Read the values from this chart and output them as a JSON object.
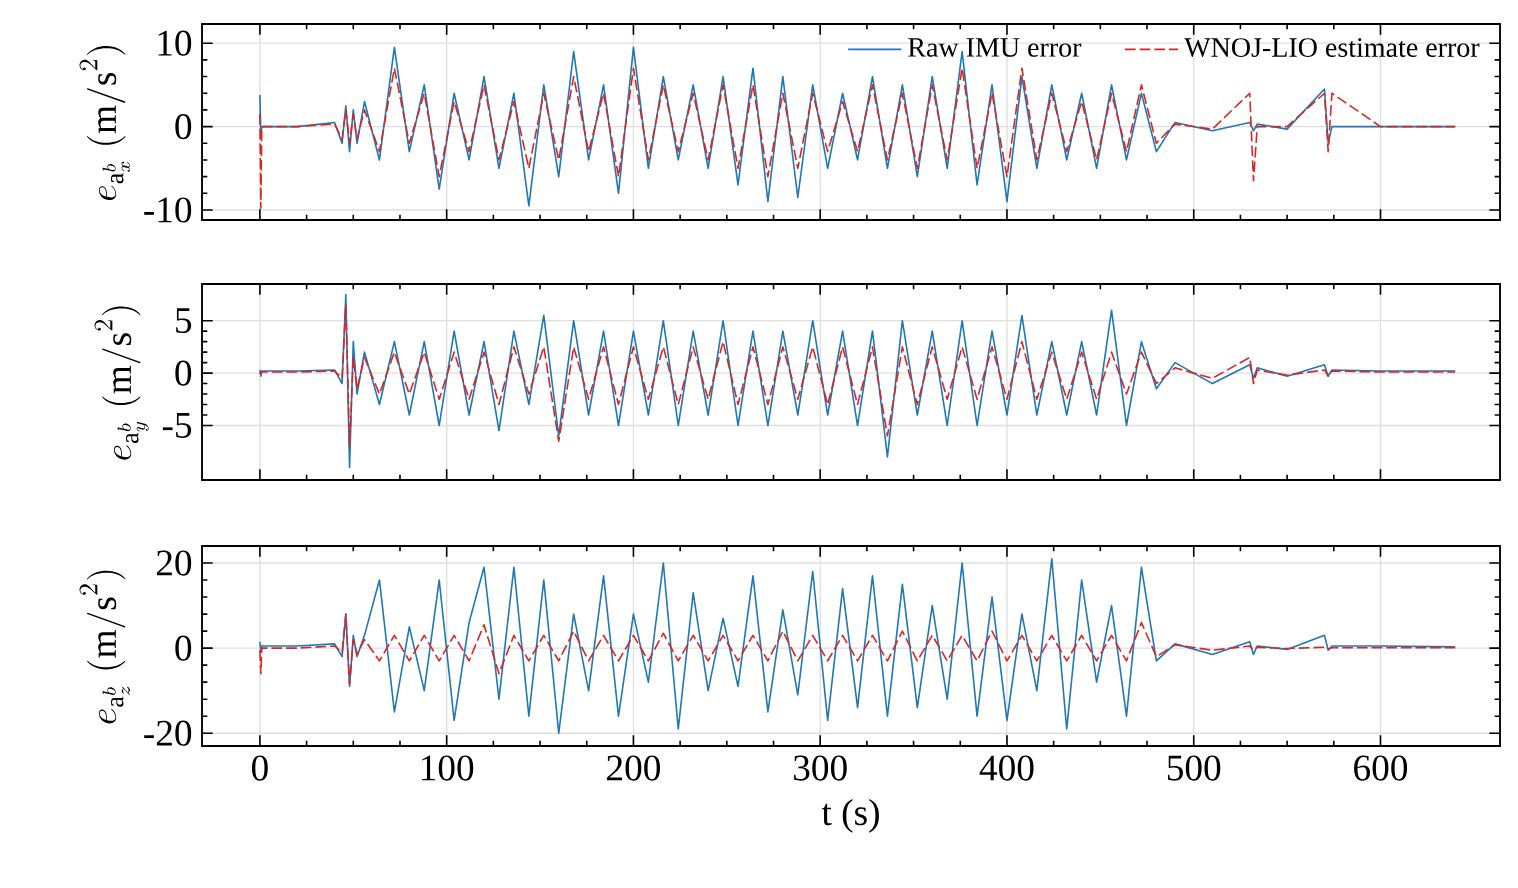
{
  "chart_data": [
    {
      "type": "line",
      "ylabel": "e_{\\mathrm{a}_x^b}\\ (\\mathrm{m/s}^2)",
      "xlim": [
        -31,
        664
      ],
      "ylim": [
        -11.2,
        12.3
      ],
      "xticks": [
        0,
        100,
        200,
        300,
        400,
        500,
        600
      ],
      "yticks": [
        -10,
        0,
        10
      ],
      "grid": true,
      "legend": "top right",
      "tick_labels": "y",
      "x": [
        0,
        0.5,
        1,
        20,
        40,
        44,
        46,
        48,
        50,
        52,
        56,
        64,
        72,
        80,
        88,
        96,
        104,
        112,
        120,
        128,
        136,
        144,
        152,
        160,
        168,
        176,
        184,
        192,
        200,
        208,
        216,
        224,
        232,
        240,
        248,
        256,
        264,
        272,
        280,
        288,
        296,
        304,
        312,
        320,
        328,
        336,
        344,
        352,
        360,
        368,
        376,
        384,
        392,
        400,
        408,
        416,
        424,
        432,
        440,
        448,
        456,
        464,
        472,
        480,
        490,
        510,
        530,
        532,
        534,
        550,
        570,
        572,
        574,
        600,
        640
      ],
      "series": [
        {
          "name": "Raw IMU error",
          "color": "#1f77b4",
          "line_style": "solid",
          "values": [
            3.8,
            -1,
            0,
            0,
            0.5,
            -2,
            2.5,
            -3,
            2,
            -2,
            3,
            -4,
            9.5,
            -3,
            5,
            -7.5,
            4,
            -4,
            6,
            -5,
            4,
            -9.5,
            5,
            -6,
            9,
            -4,
            5,
            -8,
            9.5,
            -5,
            6,
            -4,
            5,
            -5,
            6,
            -7,
            7,
            -9,
            6,
            -8.5,
            5,
            -5,
            4,
            -4,
            6,
            -5,
            5,
            -6,
            6,
            -5,
            9,
            -7,
            5,
            -9,
            6,
            -5,
            5,
            -4,
            4,
            -5,
            5,
            -4,
            4,
            -3,
            0.5,
            -0.5,
            0.5,
            -0.5,
            0.3,
            -0.3,
            4.5,
            -2,
            0,
            0,
            0
          ]
        },
        {
          "name": "WNOJ-LIO estimate error",
          "color": "#d62728",
          "line_style": "dashed",
          "values": [
            1.5,
            -9.8,
            0,
            0,
            0.3,
            -1.5,
            2,
            -2,
            1.5,
            -1.5,
            2,
            -3,
            7,
            -2,
            4,
            -6,
            3,
            -3,
            5,
            -4,
            3,
            -5,
            4,
            -4,
            6,
            -3,
            4,
            -6,
            7,
            -4,
            5,
            -3,
            4,
            -4,
            5,
            -5,
            5,
            -6,
            4,
            -5,
            4,
            -3,
            3,
            -3,
            5,
            -4,
            4,
            -5,
            5,
            -4,
            7,
            -5,
            4,
            -6,
            7,
            -4,
            4,
            -3,
            3,
            -4,
            4,
            -3,
            5,
            -2,
            0.3,
            -0.3,
            4,
            -6.5,
            0,
            0,
            4,
            -3,
            4,
            0,
            0
          ]
        }
      ]
    },
    {
      "type": "line",
      "ylabel": "e_{\\mathrm{a}_y^b}\\ (\\mathrm{m/s}^2)",
      "xlim": [
        -31,
        664
      ],
      "ylim": [
        -10.2,
        8.5
      ],
      "xticks": [
        0,
        100,
        200,
        300,
        400,
        500,
        600
      ],
      "yticks": [
        -5,
        0,
        5
      ],
      "grid": true,
      "tick_labels": "y",
      "x": [
        0,
        0.5,
        1,
        20,
        40,
        44,
        46,
        48,
        50,
        52,
        56,
        64,
        72,
        80,
        88,
        96,
        104,
        112,
        120,
        128,
        136,
        144,
        152,
        160,
        168,
        176,
        184,
        192,
        200,
        208,
        216,
        224,
        232,
        240,
        248,
        256,
        264,
        272,
        280,
        288,
        296,
        304,
        312,
        320,
        328,
        336,
        344,
        352,
        360,
        368,
        376,
        384,
        392,
        400,
        408,
        416,
        424,
        432,
        440,
        448,
        456,
        464,
        472,
        480,
        490,
        510,
        530,
        532,
        534,
        550,
        570,
        572,
        574,
        600,
        640
      ],
      "series": [
        {
          "color": "#1f77b4",
          "line_style": "solid",
          "values": [
            0.3,
            -0.3,
            0.2,
            0.2,
            0.3,
            -1,
            7.5,
            -9,
            3,
            -2,
            2,
            -3,
            3,
            -4,
            3,
            -5,
            4,
            -4,
            3,
            -5.5,
            4,
            -3,
            5.5,
            -6,
            5,
            -4,
            4,
            -5,
            4,
            -4,
            5,
            -5,
            4,
            -4,
            5,
            -5,
            4,
            -5,
            4,
            -4,
            5,
            -4,
            4,
            -5,
            4,
            -8,
            5,
            -4,
            4,
            -5,
            5,
            -5,
            4,
            -4,
            5.5,
            -4,
            3,
            -4,
            3,
            -4,
            6,
            -5,
            3,
            -1.5,
            1,
            -1,
            0.8,
            -0.5,
            0.5,
            -0.3,
            0.8,
            -0.3,
            0.3,
            0.2,
            0.2
          ]
        },
        {
          "color": "#d62728",
          "line_style": "dashed",
          "values": [
            0.1,
            -0.1,
            0.1,
            0.1,
            0.2,
            -0.5,
            6.5,
            -7,
            1.5,
            -1.5,
            1.5,
            -2,
            2,
            -2,
            2,
            -2.5,
            2,
            -2.5,
            2,
            -3,
            2.5,
            -2,
            2.5,
            -6.5,
            2.5,
            -2.5,
            2.5,
            -3,
            2.5,
            -2.5,
            2.5,
            -3,
            2.5,
            -2.5,
            3,
            -3,
            2.5,
            -3,
            2.5,
            -2.5,
            2.5,
            -3,
            2.5,
            -3,
            2.5,
            -6,
            2.5,
            -3,
            2.5,
            -2.5,
            2.5,
            -2.5,
            2.5,
            -2.5,
            3,
            -2.5,
            2,
            -2.5,
            2,
            -2.5,
            2,
            -2,
            2,
            -1,
            0.5,
            -0.5,
            1.5,
            -1,
            0.3,
            -0.2,
            0.3,
            -0.3,
            0.2,
            0.1,
            0.1
          ]
        }
      ]
    },
    {
      "type": "line",
      "ylabel": "e_{\\mathrm{a}_z^b}\\ (\\mathrm{m/s}^2)",
      "xlabel": "t (s)",
      "xlim": [
        -31,
        664
      ],
      "ylim": [
        -23,
        24
      ],
      "xticks": [
        0,
        100,
        200,
        300,
        400,
        500,
        600
      ],
      "yticks": [
        -20,
        0,
        20
      ],
      "grid": true,
      "x": [
        0,
        0.5,
        1,
        20,
        40,
        44,
        46,
        48,
        50,
        52,
        56,
        64,
        72,
        80,
        88,
        96,
        104,
        112,
        120,
        128,
        136,
        144,
        152,
        160,
        168,
        176,
        184,
        192,
        200,
        208,
        216,
        224,
        232,
        240,
        248,
        256,
        264,
        272,
        280,
        288,
        296,
        304,
        312,
        320,
        328,
        336,
        344,
        352,
        360,
        368,
        376,
        384,
        392,
        400,
        408,
        416,
        424,
        432,
        440,
        448,
        456,
        464,
        472,
        480,
        490,
        510,
        530,
        532,
        534,
        550,
        570,
        572,
        574,
        600,
        640
      ],
      "series": [
        {
          "color": "#1f77b4",
          "line_style": "solid",
          "values": [
            1.5,
            -1,
            0.5,
            0.5,
            1,
            -2,
            8,
            -9,
            3,
            -2,
            3,
            16,
            -15,
            5,
            -10,
            16,
            -17,
            6,
            19,
            -12,
            19,
            -16,
            16,
            -20,
            8,
            -10,
            17,
            -16,
            8,
            -8,
            20,
            -19,
            13,
            -10,
            7,
            -9,
            17,
            -15,
            9,
            -11,
            18,
            -17,
            14,
            -14,
            17,
            -16,
            15,
            -14,
            10,
            -12,
            20,
            -16,
            12,
            -17,
            8,
            -10,
            21,
            -19,
            16,
            -8,
            10,
            -16,
            19,
            -3,
            1,
            -1.5,
            1.5,
            -1.5,
            0.5,
            -0.3,
            3,
            -0.5,
            0.5,
            0.5,
            0.3
          ]
        },
        {
          "color": "#d62728",
          "line_style": "dashed",
          "values": [
            -0.5,
            -6,
            0,
            0,
            0.5,
            -1,
            8,
            -8.5,
            2,
            -1.5,
            2,
            -3,
            3,
            -3,
            3,
            -3,
            3,
            -3,
            5.5,
            -6,
            3,
            -3,
            3,
            -3,
            4,
            -3,
            3,
            -3,
            3,
            -3,
            3.5,
            -3,
            3,
            -3,
            3,
            -3,
            3,
            -3,
            4,
            -3,
            3,
            -3,
            3,
            -3,
            3,
            -3,
            4,
            -3,
            3,
            -3,
            3,
            -3,
            4,
            -3,
            3,
            -3,
            3,
            -3,
            3,
            -3,
            3,
            -3,
            6,
            -2,
            0.8,
            -0.5,
            0.5,
            -0.5,
            0.2,
            -0.1,
            0.2,
            -0.2,
            0.1,
            0.1,
            0.1
          ]
        }
      ]
    }
  ]
}
